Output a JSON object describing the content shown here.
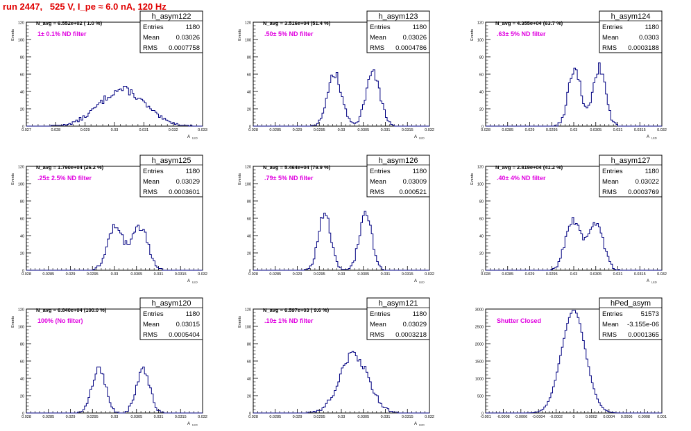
{
  "page": {
    "run_title": "run 2447,   525 V, I_pe ≈ 6.0 nA, 120 Hz",
    "label_color": "#e000e0",
    "line_color": "#000080",
    "title_color": "#e00000"
  },
  "chart_data": [
    {
      "type": "histogram",
      "hist_name": "h_asym122",
      "navg": "N_avg = 6.552e+02 ( 1.0 %)",
      "filter": "1± 0.1% ND filter",
      "stats": {
        "entries": "1180",
        "mean": "0.03026",
        "rms": "0.0007758"
      },
      "ylabel": "Events",
      "xlabel": "A",
      "xlabel_sub": "LED",
      "xlim": [
        0.027,
        0.033
      ],
      "ylim": [
        0,
        120
      ],
      "xticks": [
        "0.027",
        "0.028",
        "0.029",
        "0.03",
        "0.031",
        "0.032",
        "0.033"
      ],
      "yticks": [
        "0",
        "20",
        "40",
        "60",
        "80",
        "100",
        "120"
      ],
      "shape": {
        "mean": 0.03026,
        "rms": 0.0007758,
        "peak": 42,
        "kind": "single"
      }
    },
    {
      "type": "histogram",
      "hist_name": "h_asym123",
      "navg": "N_avg = 3.516e+04 (51.4 %)",
      "filter": ".50± 5% ND filter",
      "stats": {
        "entries": "1180",
        "mean": "0.03026",
        "rms": "0.0004786"
      },
      "ylabel": "Events",
      "xlabel": "A",
      "xlabel_sub": "LED",
      "xlim": [
        0.028,
        0.032
      ],
      "ylim": [
        0,
        120
      ],
      "xticks": [
        "0.028",
        "0.0285",
        "0.029",
        "0.0295",
        "0.03",
        "0.0305",
        "0.031",
        "0.0315",
        "0.032"
      ],
      "yticks": [
        "0",
        "20",
        "40",
        "60",
        "80",
        "100",
        "120"
      ],
      "shape": {
        "kind": "double",
        "m1": 0.02985,
        "m2": 0.03072,
        "s": 0.00016,
        "peak": 60
      }
    },
    {
      "type": "histogram",
      "hist_name": "h_asym124",
      "navg": "N_avg = 4.355e+04 (63.7 %)",
      "filter": ".63± 5% ND filter",
      "stats": {
        "entries": "1180",
        "mean": "0.0303",
        "rms": "0.0003188"
      },
      "ylabel": "Events",
      "xlabel": "A",
      "xlabel_sub": "LED",
      "xlim": [
        0.028,
        0.032
      ],
      "ylim": [
        0,
        120
      ],
      "xticks": [
        "0.028",
        "0.0285",
        "0.029",
        "0.0295",
        "0.03",
        "0.0305",
        "0.031",
        "0.0315",
        "0.032"
      ],
      "yticks": [
        "0",
        "20",
        "40",
        "60",
        "80",
        "100",
        "120"
      ],
      "shape": {
        "kind": "double",
        "m1": 0.03002,
        "m2": 0.03058,
        "s": 0.00014,
        "peak": 68
      }
    },
    {
      "type": "histogram",
      "hist_name": "h_asym125",
      "navg": "N_avg = 1.790e+04 (26.2 %)",
      "filter": ".25± 2.5% ND filter",
      "stats": {
        "entries": "1180",
        "mean": "0.03029",
        "rms": "0.0003601"
      },
      "ylabel": "Events",
      "xlabel": "A",
      "xlabel_sub": "LED",
      "xlim": [
        0.028,
        0.032
      ],
      "ylim": [
        0,
        120
      ],
      "xticks": [
        "0.028",
        "0.0285",
        "0.029",
        "0.0295",
        "0.03",
        "0.0305",
        "0.031",
        "0.0315",
        "0.032"
      ],
      "yticks": [
        "0",
        "20",
        "40",
        "60",
        "80",
        "100",
        "120"
      ],
      "shape": {
        "kind": "double",
        "m1": 0.03002,
        "m2": 0.03058,
        "s": 0.00018,
        "peak": 50
      }
    },
    {
      "type": "histogram",
      "hist_name": "h_asym126",
      "navg": "N_avg = 5.464e+04 (79.9 %)",
      "filter": ".79± 5% ND filter",
      "stats": {
        "entries": "1180",
        "mean": "0.03009",
        "rms": "0.000521"
      },
      "ylabel": "Events",
      "xlabel": "A",
      "xlabel_sub": "LED",
      "xlim": [
        0.028,
        0.032
      ],
      "ylim": [
        0,
        120
      ],
      "xticks": [
        "0.028",
        "0.0285",
        "0.029",
        "0.0295",
        "0.03",
        "0.0305",
        "0.031",
        "0.0315",
        "0.032"
      ],
      "yticks": [
        "0",
        "20",
        "40",
        "60",
        "80",
        "100",
        "120"
      ],
      "shape": {
        "kind": "double",
        "m1": 0.02962,
        "m2": 0.03055,
        "s": 0.00014,
        "peak": 68
      }
    },
    {
      "type": "histogram",
      "hist_name": "h_asym127",
      "navg": "N_avg = 2.819e+04 (41.2 %)",
      "filter": ".40± 4% ND filter",
      "stats": {
        "entries": "1180",
        "mean": "0.03022",
        "rms": "0.0003769"
      },
      "ylabel": "Events",
      "xlabel": "A",
      "xlabel_sub": "LED",
      "xlim": [
        0.028,
        0.032
      ],
      "ylim": [
        0,
        120
      ],
      "xticks": [
        "0.028",
        "0.0285",
        "0.029",
        "0.0295",
        "0.03",
        "0.0305",
        "0.031",
        "0.0315",
        "0.032"
      ],
      "yticks": [
        "0",
        "20",
        "40",
        "60",
        "80",
        "100",
        "120"
      ],
      "shape": {
        "kind": "double",
        "m1": 0.02998,
        "m2": 0.0305,
        "s": 0.00017,
        "peak": 57
      }
    },
    {
      "type": "histogram",
      "hist_name": "h_asym120",
      "navg": "N_avg = 6.840e+04 (100.0 %)",
      "filter": "100% (No filter)",
      "stats": {
        "entries": "1180",
        "mean": "0.03015",
        "rms": "0.0005404"
      },
      "ylabel": "Events",
      "xlabel": "A",
      "xlabel_sub": "LED",
      "xlim": [
        0.028,
        0.032
      ],
      "ylim": [
        0,
        120
      ],
      "xticks": [
        "0.028",
        "0.0285",
        "0.029",
        "0.0295",
        "0.03",
        "0.0305",
        "0.031",
        "0.0315",
        "0.032"
      ],
      "yticks": [
        "0",
        "20",
        "40",
        "60",
        "80",
        "100",
        "120"
      ],
      "shape": {
        "kind": "double",
        "m1": 0.02965,
        "m2": 0.03065,
        "s": 0.00015,
        "peak": 52
      }
    },
    {
      "type": "histogram",
      "hist_name": "h_asym121",
      "navg": "N_avg = 6.597e+03 ( 9.6 %)",
      "filter": ".10± 1% ND filter",
      "stats": {
        "entries": "1180",
        "mean": "0.03029",
        "rms": "0.0003218"
      },
      "ylabel": "Events",
      "xlabel": "A",
      "xlabel_sub": "LED",
      "xlim": [
        0.028,
        0.032
      ],
      "ylim": [
        0,
        120
      ],
      "xticks": [
        "0.028",
        "0.0285",
        "0.029",
        "0.0295",
        "0.03",
        "0.0305",
        "0.031",
        "0.0315",
        "0.032"
      ],
      "yticks": [
        "0",
        "20",
        "40",
        "60",
        "80",
        "100",
        "120"
      ],
      "shape": {
        "mean": 0.03029,
        "rms": 0.0003218,
        "peak": 68,
        "kind": "single"
      }
    },
    {
      "type": "histogram",
      "hist_name": "hPed_asym",
      "navg": "",
      "filter": "Shutter Closed",
      "stats": {
        "entries": "51573",
        "mean": "-3.155e-06",
        "rms": "0.0001365"
      },
      "ylabel": "",
      "xlabel": "",
      "xlabel_sub": "",
      "xlim": [
        -0.001,
        0.001
      ],
      "ylim": [
        0,
        3000
      ],
      "xticks": [
        "-0.001",
        "-0.0008",
        "-0.0006",
        "-0.0004",
        "-0.0002",
        "0",
        "0.0002",
        "0.0004",
        "0.0006",
        "0.0008",
        "0.001"
      ],
      "yticks": [
        "0",
        "500",
        "1000",
        "1500",
        "2000",
        "2500",
        "3000"
      ],
      "shape": {
        "mean": -3.155e-06,
        "rms": 0.0001365,
        "peak": 2950,
        "kind": "single"
      }
    }
  ]
}
